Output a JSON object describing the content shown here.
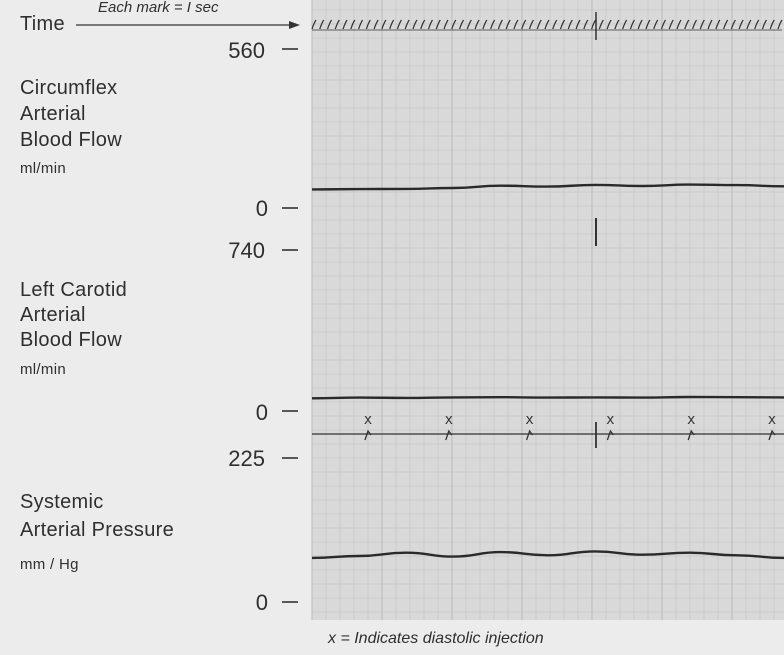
{
  "header": {
    "time_label": "Time",
    "time_note": "Each mark = I sec"
  },
  "panels": [
    {
      "id": "circumflex",
      "lines": [
        "Circumflex",
        "Arterial",
        "Blood Flow"
      ],
      "unit": "ml/min",
      "ymax_label": "560",
      "ymin_label": "0"
    },
    {
      "id": "carotid",
      "lines": [
        "Left Carotid",
        "Arterial",
        "Blood Flow"
      ],
      "unit": "ml/min",
      "ymax_label": "740",
      "ymin_label": "0"
    },
    {
      "id": "pressure",
      "lines": [
        "Systemic",
        "Arterial Pressure"
      ],
      "unit": "mm / Hg",
      "ymax_label": "225",
      "ymin_label": "0"
    }
  ],
  "injection_marker": "x",
  "footnote": "x = Indicates diastolic injection",
  "colors": {
    "trace": "#2a2a2a",
    "grid": "#bdbdbd",
    "paper": "#d9d9d9"
  },
  "chart_data": {
    "type": "line",
    "x_unit": "sec",
    "time_marks": 61,
    "injection_count": 6,
    "series": [
      {
        "name": "Circumflex Arterial Blood Flow",
        "unit": "ml/min",
        "ylim": [
          0,
          560
        ],
        "x": [
          0,
          0.1,
          0.2,
          0.3,
          0.4,
          0.5,
          0.6,
          0.7,
          0.8,
          0.9,
          1.0
        ],
        "values": [
          65,
          66,
          67,
          70,
          78,
          75,
          81,
          77,
          82,
          80,
          76
        ]
      },
      {
        "name": "Left Carotid Arterial Blood Flow",
        "unit": "ml/min",
        "ylim": [
          0,
          740
        ],
        "x": [
          0,
          0.1,
          0.2,
          0.3,
          0.4,
          0.5,
          0.6,
          0.7,
          0.8,
          0.9,
          1.0
        ],
        "values": [
          58,
          61,
          60,
          62,
          63,
          61,
          62,
          61,
          64,
          63,
          62
        ]
      },
      {
        "name": "Systemic Arterial Pressure",
        "unit": "mm / Hg",
        "ylim": [
          0,
          225
        ],
        "x": [
          0,
          0.1,
          0.2,
          0.3,
          0.4,
          0.5,
          0.6,
          0.7,
          0.8,
          0.9,
          1.0
        ],
        "values": [
          70,
          73,
          78,
          72,
          79,
          74,
          80,
          75,
          78,
          74,
          70
        ]
      }
    ]
  }
}
